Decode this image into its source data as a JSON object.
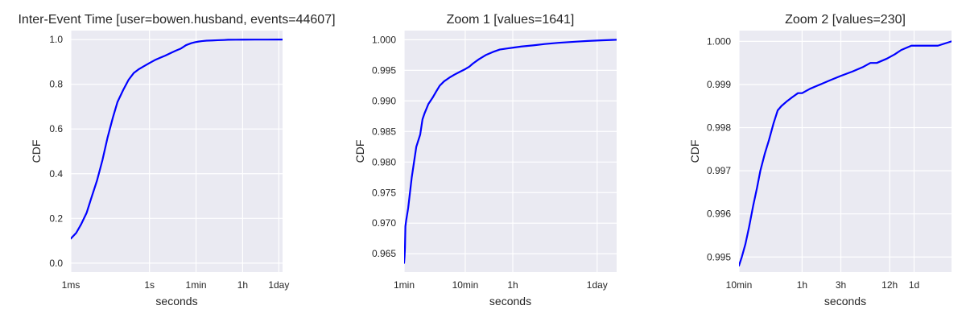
{
  "chart_data": [
    {
      "type": "line",
      "title": "Inter-Event Time [user=bowen.husband, events=44607]",
      "xlabel": "seconds",
      "ylabel": "CDF",
      "xscale": "log",
      "xlim": [
        0.001,
        120000
      ],
      "ylim": [
        -0.04,
        1.04
      ],
      "grid": true,
      "line_color": "#0000ff",
      "background_color": "#eaeaf2",
      "xticks": [
        {
          "value": 0.001,
          "label": "1ms"
        },
        {
          "value": 1,
          "label": "1s"
        },
        {
          "value": 60,
          "label": "1min"
        },
        {
          "value": 3600,
          "label": "1h"
        },
        {
          "value": 86400,
          "label": "1day"
        }
      ],
      "yticks": [
        {
          "value": 0.0,
          "label": "0.0"
        },
        {
          "value": 0.2,
          "label": "0.2"
        },
        {
          "value": 0.4,
          "label": "0.4"
        },
        {
          "value": 0.6,
          "label": "0.6"
        },
        {
          "value": 0.8,
          "label": "0.8"
        },
        {
          "value": 1.0,
          "label": "1.0"
        }
      ],
      "x": [
        0.001,
        0.0016,
        0.0025,
        0.004,
        0.006,
        0.01,
        0.016,
        0.025,
        0.04,
        0.06,
        0.1,
        0.16,
        0.25,
        0.4,
        0.6,
        1,
        1.6,
        2.5,
        4,
        6,
        10,
        16,
        25,
        40,
        55,
        75,
        100,
        150,
        250,
        400,
        700,
        1000,
        2000,
        3600,
        10000,
        30000,
        86400,
        120000
      ],
      "y": [
        0.11,
        0.135,
        0.175,
        0.225,
        0.29,
        0.37,
        0.46,
        0.56,
        0.65,
        0.72,
        0.775,
        0.82,
        0.85,
        0.868,
        0.88,
        0.895,
        0.908,
        0.918,
        0.928,
        0.938,
        0.95,
        0.96,
        0.975,
        0.984,
        0.988,
        0.991,
        0.993,
        0.995,
        0.996,
        0.997,
        0.998,
        0.999,
        0.9993,
        0.9995,
        0.9997,
        0.9998,
        0.9999,
        1.0
      ]
    },
    {
      "type": "line",
      "title": "Zoom 1 [values=1641]",
      "xlabel": "seconds",
      "ylabel": "CDF",
      "xscale": "log",
      "xlim": [
        60,
        180000
      ],
      "ylim": [
        0.962,
        1.0015
      ],
      "grid": true,
      "line_color": "#0000ff",
      "background_color": "#eaeaf2",
      "xticks": [
        {
          "value": 60,
          "label": "1min"
        },
        {
          "value": 600,
          "label": "10min"
        },
        {
          "value": 3600,
          "label": "1h"
        },
        {
          "value": 86400,
          "label": "1day"
        }
      ],
      "yticks": [
        {
          "value": 0.965,
          "label": "0.965"
        },
        {
          "value": 0.97,
          "label": "0.970"
        },
        {
          "value": 0.975,
          "label": "0.975"
        },
        {
          "value": 0.98,
          "label": "0.980"
        },
        {
          "value": 0.985,
          "label": "0.985"
        },
        {
          "value": 0.99,
          "label": "0.990"
        },
        {
          "value": 0.995,
          "label": "0.995"
        },
        {
          "value": 1.0,
          "label": "1.000"
        }
      ],
      "x": [
        60,
        61,
        62,
        63,
        65,
        70,
        80,
        95,
        110,
        120,
        130,
        150,
        175,
        200,
        230,
        270,
        330,
        400,
        500,
        600,
        700,
        800,
        1000,
        1300,
        1700,
        2200,
        3000,
        3600,
        5000,
        8000,
        12000,
        20000,
        40000,
        60000,
        100000,
        180000
      ],
      "y": [
        0.9635,
        0.9645,
        0.966,
        0.9695,
        0.9705,
        0.9725,
        0.9775,
        0.9825,
        0.9845,
        0.987,
        0.988,
        0.9895,
        0.9905,
        0.9915,
        0.9925,
        0.9932,
        0.9938,
        0.9943,
        0.9948,
        0.9952,
        0.9956,
        0.9961,
        0.9968,
        0.9975,
        0.998,
        0.9984,
        0.9986,
        0.9987,
        0.9989,
        0.9991,
        0.9993,
        0.9995,
        0.9997,
        0.9998,
        0.9999,
        1.0
      ]
    },
    {
      "type": "line",
      "title": "Zoom 2 [values=230]",
      "xlabel": "seconds",
      "ylabel": "CDF",
      "xscale": "log",
      "xlim": [
        600,
        250000
      ],
      "ylim": [
        0.99465,
        1.00025
      ],
      "grid": true,
      "line_color": "#0000ff",
      "background_color": "#eaeaf2",
      "xticks": [
        {
          "value": 600,
          "label": "10min"
        },
        {
          "value": 3600,
          "label": "1h"
        },
        {
          "value": 10800,
          "label": "3h"
        },
        {
          "value": 43200,
          "label": "12h"
        },
        {
          "value": 86400,
          "label": "1d"
        }
      ],
      "yticks": [
        {
          "value": 0.995,
          "label": "0.995"
        },
        {
          "value": 0.996,
          "label": "0.996"
        },
        {
          "value": 0.997,
          "label": "0.997"
        },
        {
          "value": 0.998,
          "label": "0.998"
        },
        {
          "value": 0.999,
          "label": "0.999"
        },
        {
          "value": 1.0,
          "label": "1.000"
        }
      ],
      "x": [
        600,
        650,
        720,
        800,
        900,
        1000,
        1100,
        1250,
        1400,
        1600,
        1800,
        2000,
        2300,
        2700,
        3200,
        3600,
        4500,
        6000,
        8000,
        10800,
        15000,
        20000,
        25000,
        30000,
        40000,
        50000,
        60000,
        80000,
        100000,
        130000,
        170000,
        250000
      ],
      "y": [
        0.9948,
        0.995,
        0.9953,
        0.9957,
        0.9962,
        0.9966,
        0.997,
        0.9974,
        0.9977,
        0.9981,
        0.9984,
        0.9985,
        0.9986,
        0.9987,
        0.9988,
        0.9988,
        0.9989,
        0.999,
        0.9991,
        0.9992,
        0.9993,
        0.9994,
        0.9995,
        0.9995,
        0.9996,
        0.9997,
        0.9998,
        0.9999,
        0.9999,
        0.9999,
        0.9999,
        1.0
      ]
    }
  ]
}
